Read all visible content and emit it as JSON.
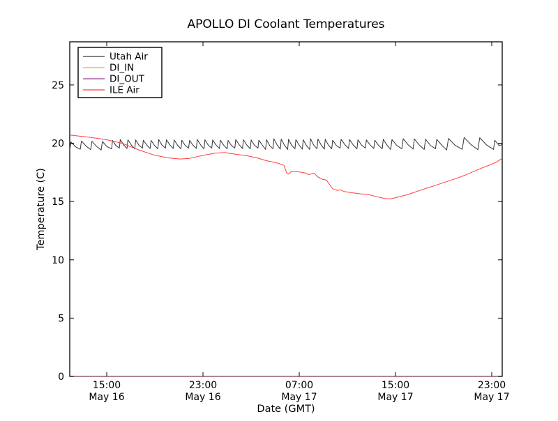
{
  "chart_data": {
    "type": "line",
    "title": "APOLLO DI Coolant Temperatures",
    "xlabel": "Date (GMT)",
    "ylabel": "Temperature (C)",
    "xlim_hours": [
      11.93,
      47.87
    ],
    "ylim": [
      0,
      28.7
    ],
    "grid": false,
    "legend_position": "upper left",
    "x_ticks": [
      {
        "hour": 15,
        "time": "15:00",
        "date": "May 16"
      },
      {
        "hour": 23,
        "time": "23:00",
        "date": "May 16"
      },
      {
        "hour": 31,
        "time": "07:00",
        "date": "May 17"
      },
      {
        "hour": 39,
        "time": "15:00",
        "date": "May 17"
      },
      {
        "hour": 47,
        "time": "23:00",
        "date": "May 17"
      }
    ],
    "y_ticks": [
      0,
      5,
      10,
      15,
      20,
      25
    ],
    "legend": [
      {
        "label": "Utah Air",
        "color": "#3a3a3a"
      },
      {
        "label": "DI_IN",
        "color": "#ffa51e"
      },
      {
        "label": "DI_OUT",
        "color": "#9b3d9b"
      },
      {
        "label": "ILE Air",
        "color": "#ff3d3d"
      }
    ],
    "series": {
      "utah_air": {
        "name": "Utah Air",
        "color": "#333333",
        "shape": "sawtooth",
        "sawtooth_blocks": [
          {
            "start": 11.93,
            "count": 4,
            "period": 0.87,
            "peak": 20.15,
            "trough": 19.45
          },
          {
            "start": 15.41,
            "count": 20,
            "period": 0.64,
            "peak": 20.28,
            "trough": 19.55
          },
          {
            "start": 28.21,
            "count": 9,
            "period": 0.61,
            "peak": 20.34,
            "trough": 19.5
          },
          {
            "start": 33.7,
            "count": 7,
            "period": 0.7,
            "peak": 20.3,
            "trough": 19.55
          },
          {
            "start": 38.6,
            "count": 5,
            "period": 0.93,
            "peak": 20.35,
            "trough": 19.5
          },
          {
            "start": 43.25,
            "count": 3,
            "period": 1.3,
            "peak": 20.45,
            "trough": 19.45
          },
          {
            "start": 47.15,
            "count": 1,
            "period": 0.85,
            "peak": 20.3,
            "trough": 19.5
          }
        ]
      },
      "di_in": {
        "name": "DI_IN",
        "color": "#ffa51e",
        "points": [
          [
            11.93,
            0
          ],
          [
            47.87,
            0
          ]
        ]
      },
      "di_out": {
        "name": "DI_OUT",
        "color": "#9b3d9b",
        "points": [
          [
            11.93,
            0
          ],
          [
            47.87,
            0
          ]
        ]
      },
      "ile_air": {
        "name": "ILE Air",
        "color": "#ff3d3d",
        "points": [
          [
            11.93,
            20.7
          ],
          [
            13.67,
            20.5
          ],
          [
            15.0,
            20.3
          ],
          [
            16.28,
            20.0
          ],
          [
            17.73,
            19.4
          ],
          [
            18.89,
            19.0
          ],
          [
            20.05,
            18.75
          ],
          [
            21.09,
            18.65
          ],
          [
            21.9,
            18.7
          ],
          [
            22.94,
            18.95
          ],
          [
            23.99,
            19.15
          ],
          [
            24.8,
            19.2
          ],
          [
            25.73,
            19.05
          ],
          [
            26.54,
            18.95
          ],
          [
            27.47,
            18.75
          ],
          [
            28.28,
            18.5
          ],
          [
            29.2,
            18.3
          ],
          [
            29.73,
            18.1
          ],
          [
            29.96,
            17.45
          ],
          [
            30.13,
            17.35
          ],
          [
            30.36,
            17.6
          ],
          [
            30.94,
            17.55
          ],
          [
            31.52,
            17.45
          ],
          [
            31.81,
            17.3
          ],
          [
            32.22,
            17.45
          ],
          [
            32.56,
            17.1
          ],
          [
            32.97,
            16.9
          ],
          [
            33.26,
            16.85
          ],
          [
            33.49,
            16.5
          ],
          [
            33.78,
            16.1
          ],
          [
            34.13,
            15.95
          ],
          [
            34.42,
            16.0
          ],
          [
            34.77,
            15.85
          ],
          [
            35.41,
            15.75
          ],
          [
            36.16,
            15.65
          ],
          [
            36.74,
            15.6
          ],
          [
            37.14,
            15.5
          ],
          [
            37.72,
            15.35
          ],
          [
            38.13,
            15.25
          ],
          [
            38.59,
            15.22
          ],
          [
            39.29,
            15.4
          ],
          [
            39.87,
            15.55
          ],
          [
            40.45,
            15.75
          ],
          [
            41.03,
            15.95
          ],
          [
            41.61,
            16.15
          ],
          [
            42.36,
            16.4
          ],
          [
            43.23,
            16.7
          ],
          [
            44.1,
            17.0
          ],
          [
            44.86,
            17.3
          ],
          [
            45.55,
            17.6
          ],
          [
            46.25,
            17.9
          ],
          [
            46.88,
            18.15
          ],
          [
            47.41,
            18.4
          ],
          [
            47.87,
            18.7
          ]
        ]
      }
    }
  }
}
